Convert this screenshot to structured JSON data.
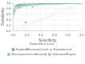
{
  "chart_data": {
    "type": "line",
    "title": "",
    "xlabel": "Specificity",
    "ylabel": "Sensitivity",
    "xlim": [
      0.0,
      1.0
    ],
    "ylim": [
      0.0,
      1.0
    ],
    "xticks": [
      {
        "value": 0.0,
        "label": "0.0"
      },
      0.2,
      0.4,
      0.6,
      0.8,
      {
        "value": 1.0,
        "label": "1.0"
      }
    ],
    "yticks": [
      {
        "value": 0.0,
        "label": "0.0"
      },
      0.2,
      0.4,
      0.6,
      0.8,
      {
        "value": 1.0,
        "label": "1.0"
      }
    ],
    "grid": true,
    "legend": "bottom",
    "legend_title": "Experience level",
    "reference_line": {
      "x": [
        0,
        1
      ],
      "y": [
        0,
        1
      ],
      "color": "#c0c0c0",
      "line_style": "dashed"
    },
    "series": [
      {
        "name": "Expert/Advanced level",
        "color": "#70c490",
        "marker": "circle",
        "x": [
          0.0,
          0.01,
          0.02,
          0.03,
          0.05,
          0.08,
          0.13,
          0.2,
          0.32,
          0.5,
          0.75,
          1.0
        ],
        "values": [
          0.65,
          0.78,
          0.85,
          0.89,
          0.92,
          0.94,
          0.96,
          0.97,
          0.98,
          0.99,
          0.99,
          1.0
        ],
        "points_x": [
          0.04,
          0.06,
          0.08,
          0.1,
          0.12,
          0.16
        ],
        "points_y": [
          0.9,
          0.92,
          0.93,
          0.94,
          0.95,
          0.95
        ]
      },
      {
        "name": "Experienced",
        "color": "#b8dca0",
        "marker": "diamond",
        "x": [
          0.0,
          0.01,
          0.02,
          0.04,
          0.07,
          0.11,
          0.18,
          0.28,
          0.44,
          0.65,
          1.0
        ],
        "values": [
          0.6,
          0.72,
          0.8,
          0.86,
          0.9,
          0.93,
          0.95,
          0.96,
          0.97,
          0.98,
          1.0
        ],
        "points_x": [
          0.06,
          0.09,
          0.12
        ],
        "points_y": [
          0.89,
          0.92,
          0.93
        ]
      },
      {
        "name": "Non-experienced/trained",
        "color": "#90c8e0",
        "marker": "circle",
        "x": [
          0.0,
          0.01,
          0.03,
          0.05,
          0.09,
          0.15,
          0.24,
          0.38,
          0.58,
          1.0
        ],
        "values": [
          0.55,
          0.68,
          0.76,
          0.83,
          0.88,
          0.91,
          0.93,
          0.95,
          0.97,
          1.0
        ],
        "points_x": [
          0.08,
          0.13,
          0.2,
          0.28
        ],
        "points_y": [
          0.86,
          0.9,
          0.92,
          0.86
        ]
      },
      {
        "name": "Unknown/Expert",
        "color": "#c8b8d8",
        "marker": "circle",
        "x": [
          0.0,
          0.02,
          0.04,
          0.07,
          0.12,
          0.2,
          0.32,
          0.5,
          1.0
        ],
        "values": [
          0.5,
          0.65,
          0.75,
          0.82,
          0.87,
          0.91,
          0.94,
          0.96,
          1.0
        ],
        "points_x": [
          0.1,
          0.18
        ],
        "points_y": [
          0.84,
          0.3
        ]
      }
    ]
  }
}
